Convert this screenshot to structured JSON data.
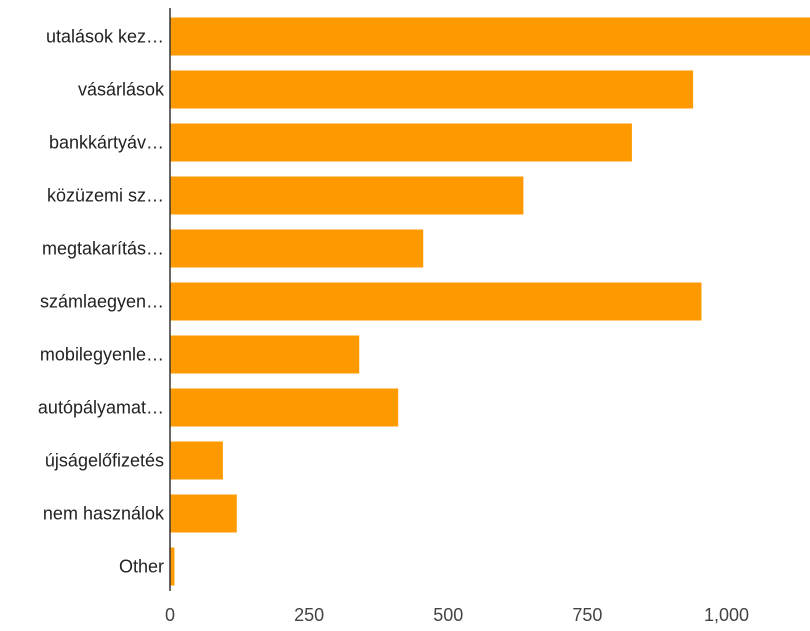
{
  "chart_data": {
    "type": "bar",
    "orientation": "horizontal",
    "categories": [
      "utalások kez…",
      "vásárlások",
      "bankkártyáv…",
      "közüzemi sz…",
      "megtakarítás…",
      "számlaegyen…",
      "mobilegyenle…",
      "autópályamat…",
      "újságelőfizetés",
      "nem használok",
      "Other"
    ],
    "values": [
      1175,
      940,
      830,
      635,
      455,
      955,
      340,
      410,
      95,
      120,
      8
    ],
    "xlim": [
      0,
      1150
    ],
    "xticks": [
      0,
      250,
      500,
      750,
      1000
    ],
    "xtick_labels": [
      "0",
      "250",
      "500",
      "750",
      "1,000"
    ],
    "title": "",
    "xlabel": "",
    "ylabel": "",
    "bar_color": "#ff9900",
    "grid": false,
    "legend": "none"
  }
}
